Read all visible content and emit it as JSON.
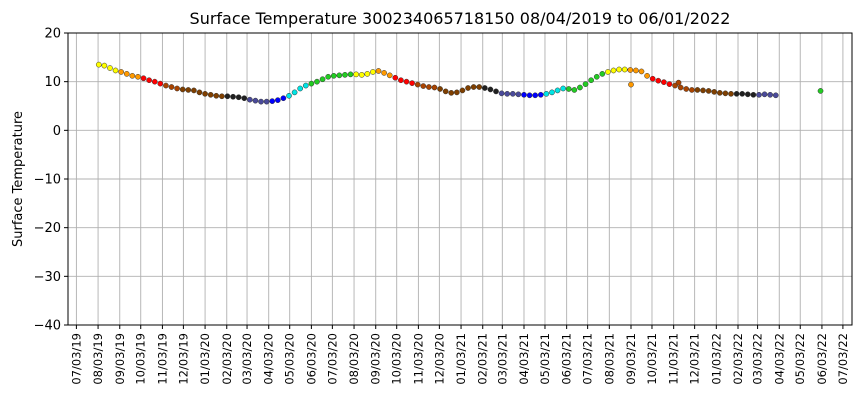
{
  "chart_data": {
    "type": "scatter",
    "title": "Surface Temperature 300234065718150  08/04/2019 to 06/01/2022",
    "xlabel": "",
    "ylabel": "Surface Temperature",
    "ylim": [
      -40,
      20
    ],
    "xlim": [
      "2019-06-21",
      "2022-07-16"
    ],
    "grid": true,
    "yticks": [
      20,
      10,
      0,
      -10,
      -20,
      -30,
      -40
    ],
    "xticks": [
      "07/03/19",
      "08/03/19",
      "09/03/19",
      "10/03/19",
      "11/03/19",
      "12/03/19",
      "01/03/20",
      "02/03/20",
      "03/03/20",
      "04/03/20",
      "05/03/20",
      "06/03/20",
      "07/03/20",
      "08/03/20",
      "09/03/20",
      "10/03/20",
      "11/03/20",
      "12/03/20",
      "01/03/21",
      "02/03/21",
      "03/03/21",
      "04/03/21",
      "05/03/21",
      "06/03/21",
      "07/03/21",
      "08/03/21",
      "09/03/21",
      "10/03/21",
      "11/03/21",
      "12/03/21",
      "01/03/22",
      "02/03/22",
      "03/03/22",
      "04/03/22",
      "05/03/22",
      "06/03/22",
      "07/03/22"
    ],
    "points": [
      {
        "x": "2019-08-04",
        "y": 13.5
      },
      {
        "x": "2019-08-12",
        "y": 13.3
      },
      {
        "x": "2019-08-20",
        "y": 12.8
      },
      {
        "x": "2019-08-28",
        "y": 12.3
      },
      {
        "x": "2019-09-05",
        "y": 12.0
      },
      {
        "x": "2019-09-13",
        "y": 11.6
      },
      {
        "x": "2019-09-21",
        "y": 11.2
      },
      {
        "x": "2019-09-29",
        "y": 11.0
      },
      {
        "x": "2019-10-07",
        "y": 10.7
      },
      {
        "x": "2019-10-15",
        "y": 10.3
      },
      {
        "x": "2019-10-23",
        "y": 10.0
      },
      {
        "x": "2019-10-31",
        "y": 9.6
      },
      {
        "x": "2019-11-08",
        "y": 9.2
      },
      {
        "x": "2019-11-16",
        "y": 8.9
      },
      {
        "x": "2019-11-24",
        "y": 8.6
      },
      {
        "x": "2019-12-02",
        "y": 8.4
      },
      {
        "x": "2019-12-10",
        "y": 8.3
      },
      {
        "x": "2019-12-18",
        "y": 8.2
      },
      {
        "x": "2019-12-26",
        "y": 7.8
      },
      {
        "x": "2020-01-03",
        "y": 7.5
      },
      {
        "x": "2020-01-11",
        "y": 7.3
      },
      {
        "x": "2020-01-19",
        "y": 7.1
      },
      {
        "x": "2020-01-27",
        "y": 7.0
      },
      {
        "x": "2020-02-04",
        "y": 7.0
      },
      {
        "x": "2020-02-12",
        "y": 6.9
      },
      {
        "x": "2020-02-20",
        "y": 6.8
      },
      {
        "x": "2020-02-28",
        "y": 6.6
      },
      {
        "x": "2020-03-07",
        "y": 6.3
      },
      {
        "x": "2020-03-15",
        "y": 6.1
      },
      {
        "x": "2020-03-23",
        "y": 5.9
      },
      {
        "x": "2020-03-31",
        "y": 5.9
      },
      {
        "x": "2020-04-08",
        "y": 6.0
      },
      {
        "x": "2020-04-16",
        "y": 6.2
      },
      {
        "x": "2020-04-24",
        "y": 6.6
      },
      {
        "x": "2020-05-02",
        "y": 7.1
      },
      {
        "x": "2020-05-10",
        "y": 7.8
      },
      {
        "x": "2020-05-18",
        "y": 8.6
      },
      {
        "x": "2020-05-26",
        "y": 9.2
      },
      {
        "x": "2020-06-03",
        "y": 9.6
      },
      {
        "x": "2020-06-11",
        "y": 10.0
      },
      {
        "x": "2020-06-19",
        "y": 10.5
      },
      {
        "x": "2020-06-27",
        "y": 11.0
      },
      {
        "x": "2020-07-05",
        "y": 11.2
      },
      {
        "x": "2020-07-13",
        "y": 11.3
      },
      {
        "x": "2020-07-21",
        "y": 11.4
      },
      {
        "x": "2020-07-29",
        "y": 11.5
      },
      {
        "x": "2020-08-06",
        "y": 11.5
      },
      {
        "x": "2020-08-14",
        "y": 11.4
      },
      {
        "x": "2020-08-22",
        "y": 11.6
      },
      {
        "x": "2020-08-30",
        "y": 12.0
      },
      {
        "x": "2020-09-07",
        "y": 12.2
      },
      {
        "x": "2020-09-15",
        "y": 11.8
      },
      {
        "x": "2020-09-23",
        "y": 11.3
      },
      {
        "x": "2020-10-01",
        "y": 10.8
      },
      {
        "x": "2020-10-09",
        "y": 10.3
      },
      {
        "x": "2020-10-17",
        "y": 10.0
      },
      {
        "x": "2020-10-25",
        "y": 9.7
      },
      {
        "x": "2020-11-02",
        "y": 9.4
      },
      {
        "x": "2020-11-10",
        "y": 9.1
      },
      {
        "x": "2020-11-18",
        "y": 8.9
      },
      {
        "x": "2020-11-26",
        "y": 8.8
      },
      {
        "x": "2020-12-04",
        "y": 8.5
      },
      {
        "x": "2020-12-12",
        "y": 8.0
      },
      {
        "x": "2020-12-20",
        "y": 7.7
      },
      {
        "x": "2020-12-28",
        "y": 7.8
      },
      {
        "x": "2021-01-05",
        "y": 8.2
      },
      {
        "x": "2021-01-13",
        "y": 8.7
      },
      {
        "x": "2021-01-21",
        "y": 8.9
      },
      {
        "x": "2021-01-29",
        "y": 8.9
      },
      {
        "x": "2021-02-06",
        "y": 8.7
      },
      {
        "x": "2021-02-14",
        "y": 8.4
      },
      {
        "x": "2021-02-22",
        "y": 8.0
      },
      {
        "x": "2021-03-02",
        "y": 7.6
      },
      {
        "x": "2021-03-10",
        "y": 7.5
      },
      {
        "x": "2021-03-18",
        "y": 7.5
      },
      {
        "x": "2021-03-26",
        "y": 7.4
      },
      {
        "x": "2021-04-03",
        "y": 7.3
      },
      {
        "x": "2021-04-11",
        "y": 7.2
      },
      {
        "x": "2021-04-19",
        "y": 7.2
      },
      {
        "x": "2021-04-27",
        "y": 7.3
      },
      {
        "x": "2021-05-05",
        "y": 7.5
      },
      {
        "x": "2021-05-13",
        "y": 7.8
      },
      {
        "x": "2021-05-21",
        "y": 8.2
      },
      {
        "x": "2021-05-29",
        "y": 8.6
      },
      {
        "x": "2021-06-06",
        "y": 8.5
      },
      {
        "x": "2021-06-14",
        "y": 8.3
      },
      {
        "x": "2021-06-22",
        "y": 8.8
      },
      {
        "x": "2021-06-30",
        "y": 9.5
      },
      {
        "x": "2021-07-08",
        "y": 10.3
      },
      {
        "x": "2021-07-16",
        "y": 11.0
      },
      {
        "x": "2021-07-24",
        "y": 11.6
      },
      {
        "x": "2021-08-01",
        "y": 12.0
      },
      {
        "x": "2021-08-09",
        "y": 12.3
      },
      {
        "x": "2021-08-17",
        "y": 12.5
      },
      {
        "x": "2021-08-25",
        "y": 12.5
      },
      {
        "x": "2021-09-02",
        "y": 12.4
      },
      {
        "x": "2021-09-10",
        "y": 12.3
      },
      {
        "x": "2021-09-18",
        "y": 12.1
      },
      {
        "x": "2021-09-26",
        "y": 11.2
      },
      {
        "x": "2021-10-04",
        "y": 10.6
      },
      {
        "x": "2021-10-12",
        "y": 10.2
      },
      {
        "x": "2021-10-20",
        "y": 9.9
      },
      {
        "x": "2021-10-28",
        "y": 9.5
      },
      {
        "x": "2021-11-05",
        "y": 9.2
      },
      {
        "x": "2021-11-13",
        "y": 8.8
      },
      {
        "x": "2021-11-21",
        "y": 8.5
      },
      {
        "x": "2021-11-29",
        "y": 8.3
      },
      {
        "x": "2021-12-07",
        "y": 8.3
      },
      {
        "x": "2021-12-15",
        "y": 8.2
      },
      {
        "x": "2021-12-23",
        "y": 8.1
      },
      {
        "x": "2021-12-31",
        "y": 7.9
      },
      {
        "x": "2022-01-08",
        "y": 7.7
      },
      {
        "x": "2022-01-16",
        "y": 7.6
      },
      {
        "x": "2022-01-24",
        "y": 7.5
      },
      {
        "x": "2022-02-01",
        "y": 7.5
      },
      {
        "x": "2022-02-09",
        "y": 7.5
      },
      {
        "x": "2022-02-17",
        "y": 7.4
      },
      {
        "x": "2022-02-25",
        "y": 7.3
      },
      {
        "x": "2022-03-05",
        "y": 7.3
      },
      {
        "x": "2022-03-13",
        "y": 7.4
      },
      {
        "x": "2022-03-21",
        "y": 7.3
      },
      {
        "x": "2022-03-29",
        "y": 7.2
      },
      {
        "x": "2021-09-03",
        "y": 9.4
      },
      {
        "x": "2021-11-10",
        "y": 9.8
      },
      {
        "x": "2022-06-01",
        "y": 8.1
      }
    ]
  },
  "colors": {
    "month_colors": [
      "#ffffff",
      "#7f3f00",
      "#202020",
      "#4a4a9a",
      "#0000ff",
      "#00e5e5",
      "#22cc22",
      "#22cc22",
      "#ffff00",
      "#ff9900",
      "#ff0000",
      "#aa4400",
      "#7f3f00"
    ],
    "grid": "#b0b0b0",
    "marker_edge": "#333333"
  }
}
